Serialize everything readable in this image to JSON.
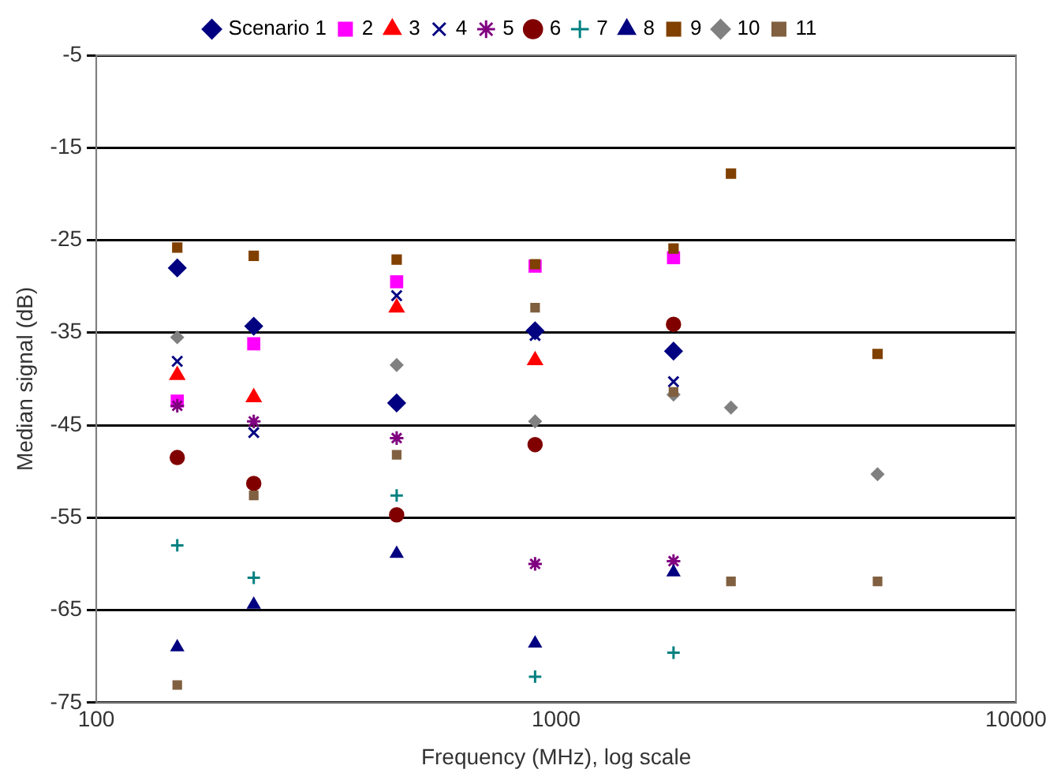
{
  "chart_data": {
    "type": "scatter",
    "xlabel": "Frequency (MHz), log scale",
    "ylabel": "Median signal (dB)",
    "log": "x",
    "grid": "y",
    "legend": "top",
    "xlim": [
      100,
      10000
    ],
    "xticks": [
      100,
      1000,
      10000
    ],
    "ylim": [
      -75,
      -5
    ],
    "yticks": [
      -75,
      -65,
      -55,
      -45,
      -35,
      -25,
      -15,
      -5
    ],
    "series": [
      {
        "name": "Scenario 1",
        "color": "#000080",
        "marker": "diamond",
        "x": [
          150,
          220,
          450,
          900,
          1800
        ],
        "values": [
          -28.0,
          -34.3,
          -42.6,
          -34.8,
          -37.0
        ]
      },
      {
        "name": "2",
        "color": "#ff00ff",
        "marker": "square",
        "x": [
          150,
          220,
          450,
          900,
          1800
        ],
        "values": [
          -42.4,
          -36.2,
          -29.5,
          -27.8,
          -26.9
        ]
      },
      {
        "name": "3",
        "color": "#ff0000",
        "marker": "triangle",
        "x": [
          150,
          220,
          450,
          900
        ],
        "values": [
          -39.6,
          -42.0,
          -32.3,
          -38.0
        ]
      },
      {
        "name": "4",
        "color": "#000080",
        "marker": "cross",
        "x": [
          150,
          220,
          450,
          900,
          1800
        ],
        "values": [
          -38.1,
          -45.8,
          -31.0,
          -35.3,
          -40.3
        ]
      },
      {
        "name": "5",
        "color": "#800080",
        "marker": "cross",
        "x": [
          150,
          220,
          450,
          900,
          1800
        ],
        "values": [
          -42.9,
          -44.6,
          -46.4,
          -60.0,
          -59.7
        ]
      },
      {
        "name": "6",
        "color": "#800000",
        "marker": "circle",
        "x": [
          150,
          220,
          450,
          900,
          1800
        ],
        "values": [
          -48.5,
          -51.3,
          -54.7,
          -47.1,
          -34.1
        ]
      },
      {
        "name": "7",
        "color": "#008080",
        "marker": "cross",
        "x": [
          150,
          220,
          450,
          900,
          1800
        ],
        "values": [
          -58.0,
          -61.5,
          -52.6,
          -72.2,
          -69.6
        ]
      },
      {
        "name": "8",
        "color": "#000080",
        "marker": "triangle",
        "x": [
          150,
          220,
          450,
          900,
          1800
        ],
        "values": [
          -69.0,
          -64.4,
          -58.9,
          -68.6,
          -60.9
        ]
      },
      {
        "name": "9",
        "color": "#804000",
        "marker": "square",
        "x": [
          150,
          220,
          450,
          900,
          1800,
          2400,
          5000
        ],
        "values": [
          -25.8,
          -26.7,
          -27.1,
          -27.6,
          -25.9,
          -17.8,
          -37.3
        ]
      },
      {
        "name": "10",
        "color": "#808080",
        "marker": "diamond",
        "x": [
          150,
          450,
          900,
          1800,
          2400,
          5000
        ],
        "values": [
          -35.5,
          -38.5,
          -44.6,
          -41.7,
          -43.1,
          -50.3
        ]
      },
      {
        "name": "11",
        "color": "#806040",
        "marker": "square",
        "x": [
          150,
          220,
          450,
          900,
          1800,
          2400,
          5000
        ],
        "values": [
          -73.1,
          -52.6,
          -48.2,
          -32.3,
          -41.4,
          -61.9,
          -61.9
        ]
      }
    ]
  }
}
